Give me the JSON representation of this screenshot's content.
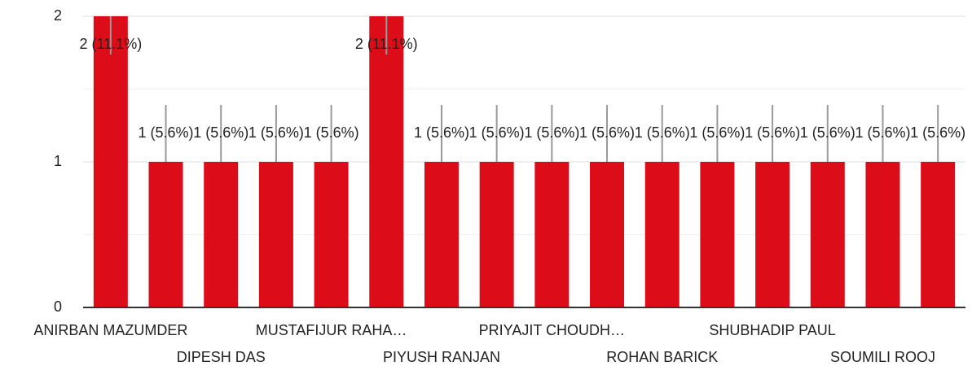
{
  "chart_data": {
    "type": "bar",
    "categories": [
      "ANIRBAN MAZUMDER",
      null,
      "DIPESH DAS",
      null,
      "MUSTAFIJUR RAHA…",
      null,
      "PIYUSH RANJAN",
      null,
      "PRIYAJIT CHOUDH…",
      null,
      "ROHAN BARICK",
      null,
      "SHUBHADIP PAUL",
      null,
      "SOUMILI ROOJ",
      null
    ],
    "values": [
      2,
      1,
      1,
      1,
      1,
      2,
      1,
      1,
      1,
      1,
      1,
      1,
      1,
      1,
      1,
      1
    ],
    "value_labels": [
      "2 (11.1%)",
      "1 (5.6%)",
      "1 (5.6%)",
      "1 (5.6%)",
      "1 (5.6%)",
      "2 (11.1%)",
      "1 (5.6%)",
      "1 (5.6%)",
      "1 (5.6%)",
      "1 (5.6%)",
      "1 (5.6%)",
      "1 (5.6%)",
      "1 (5.6%)",
      "1 (5.6%)",
      "1 (5.6%)",
      "1 (5.6%)"
    ],
    "color": "#dc0c18",
    "ylim": [
      0,
      2
    ],
    "yticks": [
      0,
      1,
      2
    ],
    "minor_yticks": [
      0.5,
      1.5
    ],
    "grid": true
  }
}
